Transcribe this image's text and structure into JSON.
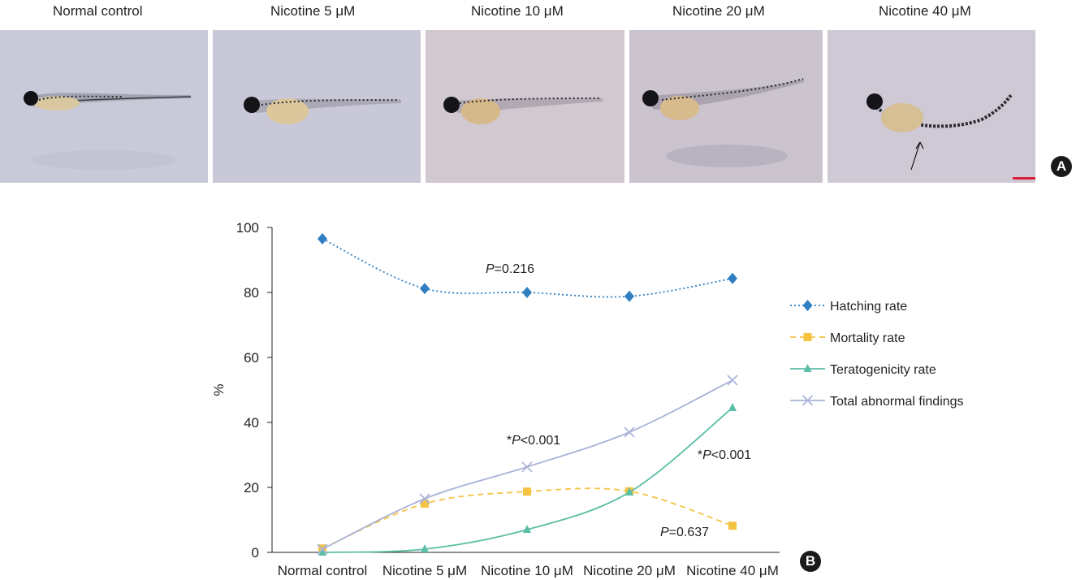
{
  "panel_a": {
    "label": "A",
    "panels": [
      {
        "title": "Normal control"
      },
      {
        "title": "Nicotine 5 μM"
      },
      {
        "title": "Nicotine 10 μM"
      },
      {
        "title": "Nicotine 20 μM"
      },
      {
        "title": "Nicotine 40 μM"
      }
    ]
  },
  "panel_b_label": "B",
  "chart_data": {
    "type": "line",
    "categories": [
      "Normal control",
      "Nicotine 5 μM",
      "Nicotine 10 μM",
      "Nicotine 20 μM",
      "Nicotine 40 μM"
    ],
    "ylabel": "%",
    "ylim": [
      0,
      100
    ],
    "yticks": [
      0,
      20,
      40,
      60,
      80,
      100
    ],
    "grid": false,
    "legend_position": "right",
    "series": [
      {
        "name": "Hatching rate",
        "values": [
          96.5,
          81.2,
          80.0,
          78.8,
          84.3
        ],
        "color": "#2f7fc1",
        "style": "dotted",
        "marker": "diamond"
      },
      {
        "name": "Mortality rate",
        "values": [
          1.2,
          15.0,
          18.7,
          18.8,
          8.2
        ],
        "color": "#f5c342",
        "style": "dashed",
        "marker": "square"
      },
      {
        "name": "Teratogenicity rate",
        "values": [
          0,
          1.0,
          7.0,
          18.5,
          44.5
        ],
        "color": "#5bbea6",
        "style": "solid",
        "marker": "triangle"
      },
      {
        "name": "Total abnormal findings",
        "values": [
          1.0,
          16.5,
          26.3,
          37.0,
          53.0
        ],
        "color": "#a9b2d6",
        "style": "solid",
        "marker": "x"
      }
    ],
    "annotations": [
      {
        "text": "P=0.216",
        "near": "Hatching rate"
      },
      {
        "text": "*P<0.001",
        "near": "Total abnormal findings"
      },
      {
        "text": "*P<0.001",
        "near": "Teratogenicity rate"
      },
      {
        "text": "P=0.637",
        "near": "Mortality rate"
      }
    ]
  }
}
